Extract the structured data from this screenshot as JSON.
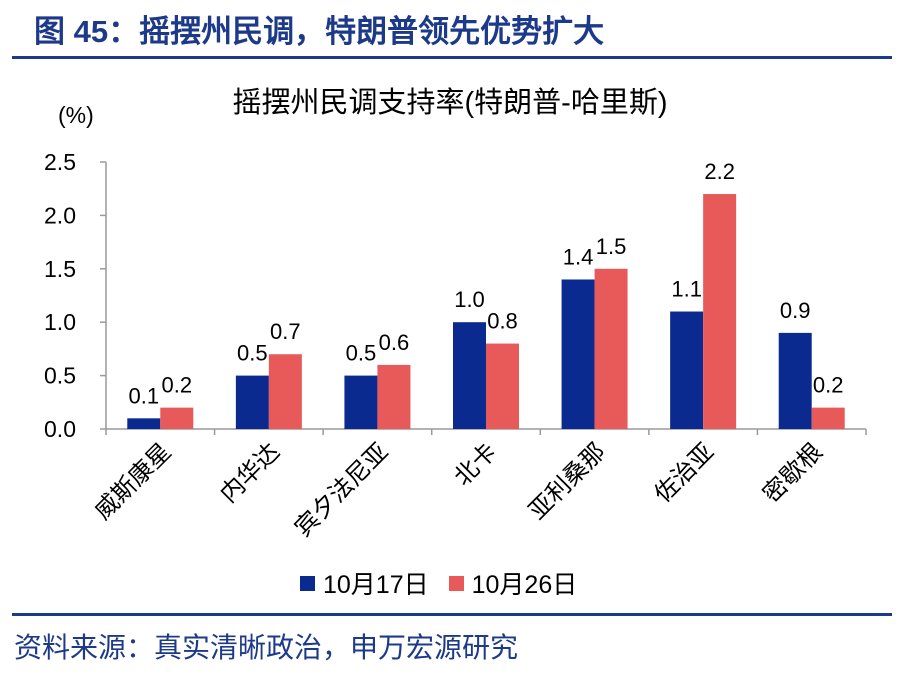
{
  "figure": {
    "title": "图 45：摇摆州民调，特朗普领先优势扩大",
    "source": "资料来源：真实清晰政治，申万宏源研究"
  },
  "colors": {
    "navy": "#1d3a8a",
    "series1": "#0a2a8f",
    "series2": "#e8595a"
  },
  "chart_data": {
    "type": "bar",
    "title": "摇摆州民调支持率(特朗普-哈里斯)",
    "ylabel": "(%)",
    "xlabel": "",
    "ylim": [
      0,
      2.5
    ],
    "yticks": [
      "0.0",
      "0.5",
      "1.0",
      "1.5",
      "2.0",
      "2.5"
    ],
    "grid": false,
    "legend_position": "bottom",
    "categories": [
      "威斯康星",
      "内华达",
      "宾夕法尼亚",
      "北卡",
      "亚利桑那",
      "佐治亚",
      "密歇根"
    ],
    "series": [
      {
        "name": "10月17日",
        "values": [
          0.1,
          0.5,
          0.5,
          1.0,
          1.4,
          1.1,
          0.9
        ],
        "labels": [
          "0.1",
          "0.5",
          "0.5",
          "1.0",
          "1.4",
          "1.1",
          "0.9"
        ]
      },
      {
        "name": "10月26日",
        "values": [
          0.2,
          0.7,
          0.6,
          0.8,
          1.5,
          2.2,
          0.2
        ],
        "labels": [
          "0.2",
          "0.7",
          "0.6",
          "0.8",
          "1.5",
          "2.2",
          "0.2"
        ]
      }
    ]
  }
}
